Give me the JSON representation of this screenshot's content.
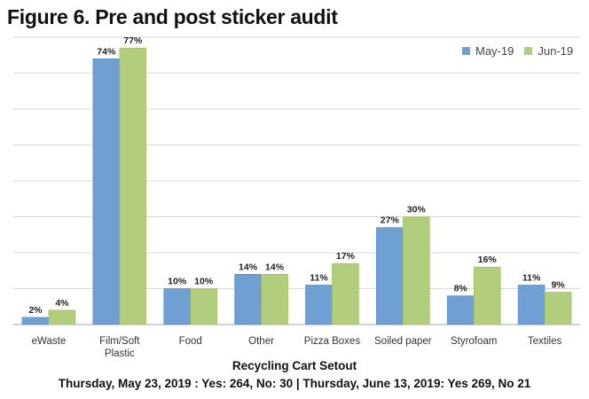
{
  "page": {
    "title": "Figure 6. Pre and post sticker audit",
    "footer_title": "Recycling Cart Setout",
    "footer_subtitle": "Thursday, May 23, 2019 : Yes: 264, No: 30  |  Thursday, June 13, 2019: Yes 269, No 21"
  },
  "colors": {
    "may": "#6f9fd3",
    "jun": "#b2cd7b",
    "grid": "#d9d9d9",
    "axis": "#a6a6a6"
  },
  "chart_data": {
    "type": "bar",
    "categories": [
      "eWaste",
      "Film/Soft Plastic",
      "Food",
      "Other",
      "Pizza Boxes",
      "Soiled paper",
      "Styrofoam",
      "Textiles"
    ],
    "category_lines": [
      [
        "eWaste"
      ],
      [
        "Film/Soft",
        "Plastic"
      ],
      [
        "Food"
      ],
      [
        "Other"
      ],
      [
        "Pizza Boxes"
      ],
      [
        "Soiled paper"
      ],
      [
        "Styrofoam"
      ],
      [
        "Textiles"
      ]
    ],
    "series": [
      {
        "name": "May-19",
        "values": [
          2,
          74,
          10,
          14,
          11,
          27,
          8,
          11
        ],
        "labels": [
          "2%",
          "74%",
          "10%",
          "14%",
          "11%",
          "27%",
          "8%",
          "11%"
        ]
      },
      {
        "name": "Jun-19",
        "values": [
          4,
          77,
          10,
          14,
          17,
          30,
          16,
          9
        ],
        "labels": [
          "4%",
          "77%",
          "10%",
          "14%",
          "17%",
          "30%",
          "16%",
          "9%"
        ]
      }
    ],
    "ylim": [
      0,
      80
    ],
    "gridlines": [
      10,
      20,
      30,
      40,
      50,
      60,
      70,
      80
    ],
    "grid": true,
    "y_tick_labels": false,
    "legend_position": "top-right"
  }
}
